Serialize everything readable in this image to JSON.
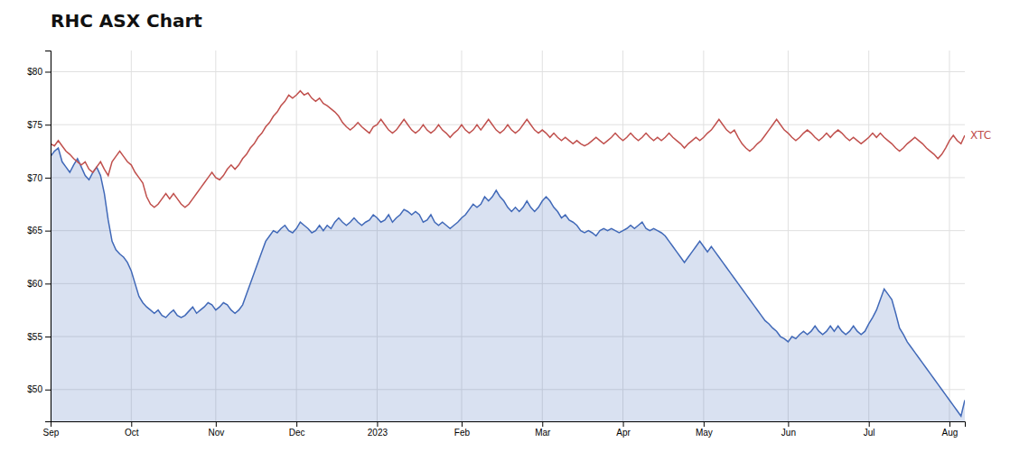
{
  "chart_data": {
    "type": "line",
    "title": "RHC ASX Chart",
    "grid": true,
    "ylim": [
      47,
      82
    ],
    "yticks": [
      {
        "value": 50,
        "label": "$50"
      },
      {
        "value": 55,
        "label": "$55"
      },
      {
        "value": 60,
        "label": "$60"
      },
      {
        "value": 65,
        "label": "$65"
      },
      {
        "value": 70,
        "label": "$70"
      },
      {
        "value": 75,
        "label": "$75"
      },
      {
        "value": 80,
        "label": "$80"
      }
    ],
    "categories": [
      "Sep",
      null,
      null,
      null,
      null,
      null,
      null,
      null,
      null,
      null,
      null,
      null,
      null,
      null,
      null,
      null,
      null,
      null,
      null,
      null,
      null,
      "Oct",
      null,
      null,
      null,
      null,
      null,
      null,
      null,
      null,
      null,
      null,
      null,
      null,
      null,
      null,
      null,
      null,
      null,
      null,
      null,
      null,
      null,
      "Nov",
      null,
      null,
      null,
      null,
      null,
      null,
      null,
      null,
      null,
      null,
      null,
      null,
      null,
      null,
      null,
      null,
      null,
      null,
      null,
      null,
      "Dec",
      null,
      null,
      null,
      null,
      null,
      null,
      null,
      null,
      null,
      null,
      null,
      null,
      null,
      null,
      null,
      null,
      null,
      null,
      null,
      null,
      "2023",
      null,
      null,
      null,
      null,
      null,
      null,
      null,
      null,
      null,
      null,
      null,
      null,
      null,
      null,
      null,
      null,
      null,
      null,
      null,
      null,
      null,
      "Feb",
      null,
      null,
      null,
      null,
      null,
      null,
      null,
      null,
      null,
      null,
      null,
      null,
      null,
      null,
      null,
      null,
      null,
      null,
      null,
      null,
      "Mar",
      null,
      null,
      null,
      null,
      null,
      null,
      null,
      null,
      null,
      null,
      null,
      null,
      null,
      null,
      null,
      null,
      null,
      null,
      null,
      null,
      "Apr",
      null,
      null,
      null,
      null,
      null,
      null,
      null,
      null,
      null,
      null,
      null,
      null,
      null,
      null,
      null,
      null,
      null,
      null,
      null,
      null,
      "May",
      null,
      null,
      null,
      null,
      null,
      null,
      null,
      null,
      null,
      null,
      null,
      null,
      null,
      null,
      null,
      null,
      null,
      null,
      null,
      null,
      null,
      "Jun",
      null,
      null,
      null,
      null,
      null,
      null,
      null,
      null,
      null,
      null,
      null,
      null,
      null,
      null,
      null,
      null,
      null,
      null,
      null,
      null,
      "Jul",
      null,
      null,
      null,
      null,
      null,
      null,
      null,
      null,
      null,
      null,
      null,
      null,
      null,
      null,
      null,
      null,
      null,
      null,
      null,
      null,
      "Aug",
      null,
      null,
      null,
      null
    ],
    "series": [
      {
        "type": "area",
        "color": "#4169b8",
        "values": [
          72.0,
          72.5,
          72.8,
          71.5,
          71.0,
          70.5,
          71.2,
          71.8,
          71.0,
          70.2,
          69.8,
          70.5,
          71.0,
          70.2,
          68.5,
          66.0,
          64.0,
          63.2,
          62.8,
          62.5,
          62.0,
          61.2,
          60.0,
          58.8,
          58.2,
          57.8,
          57.5,
          57.2,
          57.5,
          57.0,
          56.8,
          57.2,
          57.5,
          57.0,
          56.8,
          57.0,
          57.4,
          57.8,
          57.2,
          57.5,
          57.8,
          58.2,
          58.0,
          57.5,
          57.8,
          58.2,
          58.0,
          57.5,
          57.2,
          57.5,
          58.0,
          59.0,
          60.0,
          61.0,
          62.0,
          63.0,
          64.0,
          64.5,
          65.0,
          64.8,
          65.2,
          65.5,
          65.0,
          64.8,
          65.2,
          65.8,
          65.5,
          65.2,
          64.8,
          65.0,
          65.5,
          65.0,
          65.5,
          65.2,
          65.8,
          66.2,
          65.8,
          65.5,
          65.8,
          66.2,
          65.8,
          65.5,
          65.8,
          66.0,
          66.5,
          66.2,
          65.8,
          66.0,
          66.5,
          65.8,
          66.2,
          66.5,
          67.0,
          66.8,
          66.5,
          66.8,
          66.5,
          65.8,
          66.0,
          66.5,
          65.8,
          65.5,
          65.8,
          65.5,
          65.2,
          65.5,
          65.8,
          66.2,
          66.5,
          67.0,
          67.5,
          67.2,
          67.5,
          68.2,
          67.8,
          68.2,
          68.8,
          68.2,
          67.8,
          67.2,
          66.8,
          67.2,
          66.8,
          67.2,
          67.8,
          67.2,
          66.8,
          67.2,
          67.8,
          68.2,
          67.8,
          67.2,
          66.8,
          66.2,
          66.5,
          66.0,
          65.8,
          65.5,
          65.0,
          64.8,
          65.0,
          64.8,
          64.5,
          65.0,
          65.2,
          65.0,
          65.2,
          65.0,
          64.8,
          65.0,
          65.2,
          65.5,
          65.2,
          65.5,
          65.8,
          65.2,
          65.0,
          65.2,
          65.0,
          64.8,
          64.5,
          64.0,
          63.5,
          63.0,
          62.5,
          62.0,
          62.5,
          63.0,
          63.5,
          64.0,
          63.5,
          63.0,
          63.5,
          63.0,
          62.5,
          62.0,
          61.5,
          61.0,
          60.5,
          60.0,
          59.5,
          59.0,
          58.5,
          58.0,
          57.5,
          57.0,
          56.5,
          56.2,
          55.8,
          55.5,
          55.0,
          54.8,
          54.5,
          55.0,
          54.8,
          55.2,
          55.5,
          55.2,
          55.5,
          56.0,
          55.5,
          55.2,
          55.5,
          56.0,
          55.5,
          56.0,
          55.5,
          55.2,
          55.5,
          56.0,
          55.5,
          55.2,
          55.5,
          56.2,
          56.8,
          57.5,
          58.5,
          59.5,
          59.0,
          58.5,
          57.2,
          55.8,
          55.2,
          54.5,
          54.0,
          53.5,
          53.0,
          52.5,
          52.0,
          51.5,
          51.0,
          50.5,
          50.0,
          49.5,
          49.0,
          48.5,
          48.0,
          47.5,
          49.0
        ]
      },
      {
        "type": "line",
        "name": "XTC",
        "color": "#c0504d",
        "values": [
          73.2,
          73.0,
          73.5,
          73.0,
          72.5,
          72.2,
          71.8,
          71.5,
          71.2,
          71.5,
          70.8,
          70.5,
          71.0,
          71.5,
          70.8,
          70.2,
          71.5,
          72.0,
          72.5,
          72.0,
          71.5,
          71.2,
          70.5,
          70.0,
          69.5,
          68.2,
          67.5,
          67.2,
          67.5,
          68.0,
          68.5,
          68.0,
          68.5,
          68.0,
          67.5,
          67.2,
          67.5,
          68.0,
          68.5,
          69.0,
          69.5,
          70.0,
          70.5,
          70.0,
          69.8,
          70.2,
          70.8,
          71.2,
          70.8,
          71.2,
          71.8,
          72.2,
          72.8,
          73.2,
          73.8,
          74.2,
          74.8,
          75.2,
          75.8,
          76.2,
          76.8,
          77.2,
          77.8,
          77.5,
          77.8,
          78.2,
          77.8,
          78.0,
          77.5,
          77.2,
          77.5,
          77.0,
          76.8,
          76.5,
          76.2,
          75.8,
          75.2,
          74.8,
          74.5,
          74.8,
          75.2,
          74.8,
          74.5,
          74.2,
          74.8,
          75.0,
          75.5,
          75.0,
          74.5,
          74.2,
          74.5,
          75.0,
          75.5,
          75.0,
          74.5,
          74.2,
          74.5,
          75.0,
          74.5,
          74.2,
          74.5,
          75.0,
          74.5,
          74.2,
          73.8,
          74.2,
          74.5,
          75.0,
          74.5,
          74.2,
          74.5,
          75.0,
          74.5,
          75.0,
          75.5,
          75.0,
          74.5,
          74.2,
          74.5,
          75.0,
          74.5,
          74.2,
          74.5,
          75.0,
          75.5,
          75.0,
          74.5,
          74.2,
          74.5,
          74.2,
          73.8,
          74.2,
          73.8,
          73.5,
          73.8,
          73.5,
          73.2,
          73.5,
          73.2,
          73.0,
          73.2,
          73.5,
          73.8,
          73.5,
          73.2,
          73.5,
          73.8,
          74.2,
          73.8,
          73.5,
          73.8,
          74.2,
          73.8,
          73.5,
          73.8,
          74.2,
          73.8,
          73.5,
          73.8,
          73.5,
          73.8,
          74.2,
          73.8,
          73.5,
          73.2,
          72.8,
          73.2,
          73.5,
          73.8,
          73.5,
          73.8,
          74.2,
          74.5,
          75.0,
          75.5,
          75.0,
          74.5,
          74.2,
          74.5,
          73.8,
          73.2,
          72.8,
          72.5,
          72.8,
          73.2,
          73.5,
          74.0,
          74.5,
          75.0,
          75.5,
          75.0,
          74.5,
          74.2,
          73.8,
          73.5,
          73.8,
          74.2,
          74.5,
          74.2,
          73.8,
          73.5,
          73.8,
          74.2,
          73.8,
          74.2,
          74.5,
          74.2,
          73.8,
          73.5,
          73.8,
          73.5,
          73.2,
          73.5,
          73.8,
          74.2,
          73.8,
          74.2,
          73.8,
          73.5,
          73.2,
          72.8,
          72.5,
          72.8,
          73.2,
          73.5,
          73.8,
          73.5,
          73.2,
          72.8,
          72.5,
          72.2,
          71.8,
          72.2,
          72.8,
          73.5,
          74.0,
          73.5,
          73.2,
          74.0
        ]
      }
    ]
  }
}
